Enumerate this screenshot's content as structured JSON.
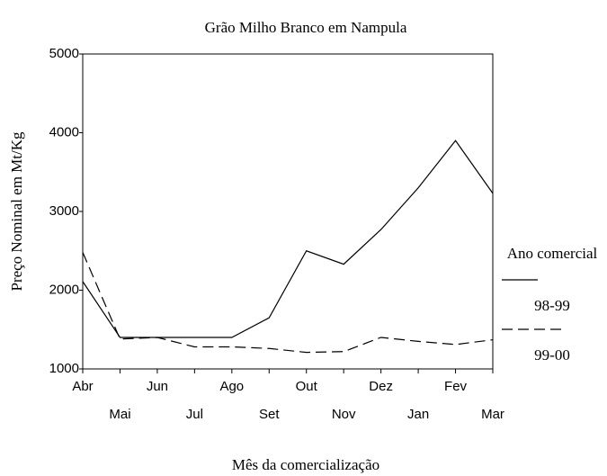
{
  "chart_data": {
    "type": "line",
    "title": "Grão Milho Branco em Nampula",
    "x_label": "Mês da comercialização",
    "y_label": "Preço Nominal em Mt/Kg",
    "categories": [
      "Abr",
      "Mai",
      "Jun",
      "Jul",
      "Ago",
      "Set",
      "Out",
      "Nov",
      "Dez",
      "Jan",
      "Fev",
      "Mar"
    ],
    "legend_title": "Ano comercial",
    "series": [
      {
        "name": "98-99",
        "color": "#000000",
        "dash": "solid",
        "values": [
          2110,
          1400,
          1400,
          1400,
          1400,
          1650,
          2500,
          2330,
          2770,
          3300,
          3900,
          3230
        ]
      },
      {
        "name": "99-00",
        "color": "#000000",
        "dash": "dashed",
        "values": [
          2480,
          1380,
          1400,
          1280,
          1280,
          1260,
          1210,
          1220,
          1400,
          1350,
          1310,
          1370
        ]
      }
    ],
    "ylim": [
      1000,
      5000
    ],
    "yticks": [
      1000,
      2000,
      3000,
      4000,
      5000
    ],
    "legend": "right"
  }
}
